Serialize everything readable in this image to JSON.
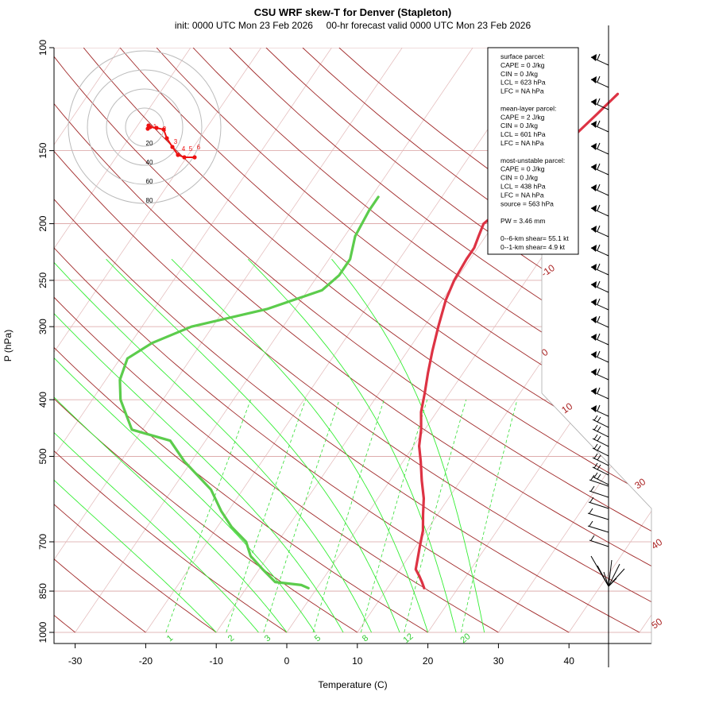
{
  "chart_data": {
    "type": "line",
    "title": "CSU WRF skew-T for Denver (Stapleton)",
    "subtitle": "init: 0000 UTC Mon 23 Feb 2026     00-hr forecast valid 0000 UTC Mon 23 Feb 2026",
    "xlabel": "Temperature (C)",
    "ylabel": "P (hPa)",
    "xlim": [
      -33,
      43
    ],
    "ylim": [
      1000,
      100
    ],
    "x_ticks": [
      "-30",
      "-20",
      "-10",
      "0",
      "10",
      "20",
      "30",
      "40"
    ],
    "y_ticks": [
      "100",
      "150",
      "200",
      "250",
      "300",
      "400",
      "500",
      "700",
      "850",
      "1000"
    ],
    "series": [
      {
        "name": "",
        "color": "#dd3344",
        "x": [
          15.2,
          14.3,
          13.3,
          12.2,
          11.5,
          10.5,
          9.5,
          8.0,
          6.5,
          4.5,
          2.5,
          0.8,
          -0.5,
          -2.2,
          -3.5,
          -5.0,
          -6.5,
          -8.0,
          -9.5,
          -10.2,
          -10.5,
          -10.5,
          -11.0,
          -11.5,
          -10.0,
          -8.0,
          -7.5,
          -7.5,
          -7.0,
          -6.0,
          -5.0
        ],
        "y": [
          840,
          820,
          800,
          780,
          750,
          710,
          670,
          630,
          590,
          550,
          510,
          480,
          450,
          420,
          390,
          360,
          330,
          300,
          270,
          250,
          230,
          220,
          210,
          200,
          185,
          170,
          160,
          150,
          140,
          130,
          120
        ]
      },
      {
        "name": "",
        "color": "#5ccc4c",
        "x": [
          -1.2,
          -2.5,
          -6.5,
          -9.5,
          -12.5,
          -14.5,
          -18.0,
          -21.0,
          -24.5,
          -31.0,
          -35.0,
          -41.5,
          -46.0,
          -48.0,
          -49.0,
          -47.0,
          -43.0,
          -34.0,
          -28.0,
          -27.0,
          -27.0,
          -28.5,
          -29.0,
          -29.0
        ],
        "y": [
          840,
          830,
          820,
          780,
          740,
          700,
          660,
          620,
          570,
          510,
          470,
          450,
          400,
          370,
          340,
          320,
          300,
          280,
          260,
          245,
          230,
          210,
          190,
          180
        ]
      }
    ],
    "parcel_info": [
      "surface parcel:",
      "CAPE = 0 J/kg",
      "CIN = 0 J/kg",
      "LCL = 623 hPa",
      "LFC = NA hPa",
      "",
      "mean-layer parcel:",
      "CAPE = 2 J/kg",
      "CIN = 0 J/kg",
      "LCL = 601 hPa",
      "LFC = NA hPa",
      "",
      "most-unstable parcel:",
      "CAPE = 0 J/kg",
      "CIN = 0 J/kg",
      "LCL = 438 hPa",
      "LFC = NA hPa",
      "source = 563 hPa",
      "",
      "PW =  3.46 mm",
      "",
      "0--6-km shear= 55.1 kt",
      "0--1-km shear= 4.9 kt"
    ],
    "dry_adiabat_labels": [
      "-10",
      "0",
      "10",
      "30",
      "40",
      "50"
    ],
    "mixing_ratio_labels": [
      "1",
      "2",
      "3",
      "5",
      "8",
      "12",
      "20"
    ],
    "hodograph": {
      "ring_labels": [
        "20",
        "40",
        "60",
        "80"
      ],
      "point_labels": [
        "1",
        "2",
        "3",
        "4",
        "5",
        "6"
      ],
      "color": "#ee1111"
    },
    "grid": true,
    "legend": "none"
  }
}
